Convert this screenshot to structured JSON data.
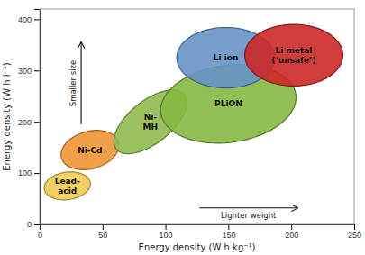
{
  "chart_data": {
    "type": "ellipse",
    "xlabel": "Energy density (W h kg⁻¹)",
    "ylabel": "Energy density (W h l⁻¹)",
    "xlim": [
      0,
      250
    ],
    "ylim": [
      0,
      420
    ],
    "xticks": [
      0,
      50,
      100,
      150,
      200,
      250
    ],
    "yticks": [
      0,
      100,
      200,
      300,
      400
    ],
    "grid": false,
    "series": [
      {
        "name": "Lead-\nacid",
        "color": "#f0cc50",
        "cx": 22,
        "cy": 75,
        "width": 36,
        "height": 55,
        "angle": -10
      },
      {
        "name": "Ni-Cd",
        "color": "#f09535",
        "cx": 40,
        "cy": 145,
        "width": 44,
        "height": 78,
        "angle": -12
      },
      {
        "name": "Ni-\nMH",
        "color": "#90ba50",
        "cx": 88,
        "cy": 200,
        "width": 44,
        "height": 130,
        "angle": -18
      },
      {
        "name": "PLiON",
        "color": "#86b840",
        "cx": 150,
        "cy": 235,
        "width": 105,
        "height": 155,
        "angle": -12
      },
      {
        "name": "Li ion",
        "color": "#6892c8",
        "cx": 148,
        "cy": 325,
        "width": 78,
        "height": 118,
        "angle": 0
      },
      {
        "name": "Li metal\n(‘unsafe’)",
        "color": "#cc2828",
        "cx": 202,
        "cy": 330,
        "width": 78,
        "height": 120,
        "angle": 0
      }
    ],
    "annotations": [
      {
        "text": "Smaller size",
        "x": [
          33,
          33
        ],
        "y": [
          195,
          355
        ]
      },
      {
        "text": "Lighter weight",
        "x": [
          127,
          205
        ],
        "y": [
          32,
          32
        ]
      }
    ]
  }
}
